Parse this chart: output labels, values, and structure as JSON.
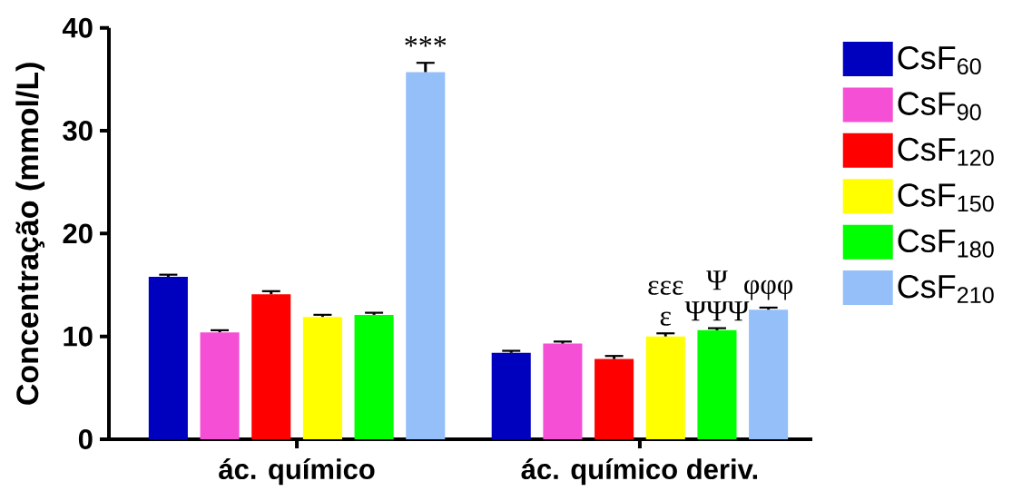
{
  "chart_data": {
    "type": "bar",
    "categories": [
      "ác. químico",
      "ác. químico deriv."
    ],
    "ylabel": "Concentração (mmol/L)",
    "ylim": [
      0,
      40
    ],
    "yticks": [
      0,
      10,
      20,
      30,
      40
    ],
    "legend": "right",
    "series": [
      {
        "name": "CsF$_{60}$",
        "color": "#0000bf",
        "values": [
          15.8,
          8.4
        ],
        "errors": [
          0.2,
          0.2
        ]
      },
      {
        "name": "CsF$_{90}$",
        "color": "#f550d5",
        "values": [
          10.4,
          9.3
        ],
        "errors": [
          0.2,
          0.2
        ]
      },
      {
        "name": "CsF$_{120}$",
        "color": "#ff0000",
        "values": [
          14.1,
          7.8
        ],
        "errors": [
          0.3,
          0.3
        ]
      },
      {
        "name": "CsF$_{150}$",
        "color": "#ffff00",
        "values": [
          11.9,
          10.0
        ],
        "errors": [
          0.2,
          0.3
        ]
      },
      {
        "name": "CsF$_{180}$",
        "color": "#00ff00",
        "values": [
          12.1,
          10.6
        ],
        "errors": [
          0.2,
          0.2
        ]
      },
      {
        "name": "CsF$_{210}$",
        "color": "#94bff8",
        "values": [
          35.7,
          12.6
        ],
        "errors": [
          0.9,
          0.2
        ]
      }
    ],
    "annotations": [
      "***",
      "ε",
      "εεε",
      "ΨΨΨ",
      "Ψ",
      "φφφ"
    ]
  }
}
